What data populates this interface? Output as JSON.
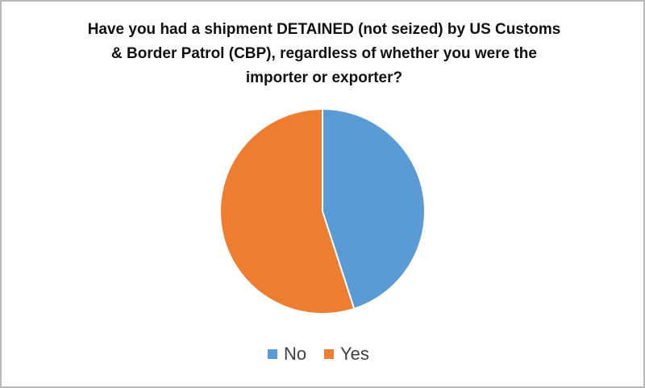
{
  "chart_data": {
    "type": "pie",
    "title": "Have you had a shipment DETAINED (not seized) by US Customs & Border Patrol (CBP), regardless of whether you were the importer or exporter?",
    "categories": [
      "No",
      "Yes"
    ],
    "values": [
      45,
      55
    ],
    "colors": [
      "#5b9bd5",
      "#ed7d31"
    ],
    "legend": "bottom"
  }
}
